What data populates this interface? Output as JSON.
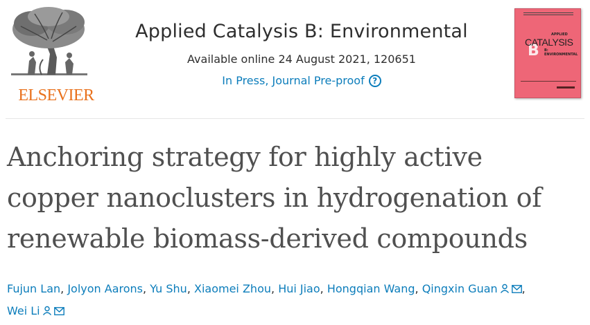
{
  "publisher": {
    "name": "ELSEVIER",
    "logo_icon": "elsevier-tree-icon"
  },
  "journal": {
    "title": "Applied Catalysis B: Environmental",
    "availability": "Available online 24 August 2021, 120651",
    "status": "In Press, Journal Pre-proof",
    "help_icon": "?",
    "cover": {
      "applied": "APPLIED",
      "catalysis": "CATALYSIS",
      "letter": "B",
      "environmental": "B: ENVIRONMENTAL",
      "color": "#ee6677"
    }
  },
  "article": {
    "title_lines": [
      "Anchoring strategy for highly active",
      "copper nanoclusters in hydrogenation of",
      "renewable biomass-derived compounds"
    ]
  },
  "authors": {
    "list": [
      "Fujun Lan",
      "Jolyon Aarons",
      "Yu Shu",
      "Xiaomei Zhou",
      "Hui Jiao",
      "Hongqian Wang",
      "Qingxin Guan",
      "Wei Li"
    ],
    "separator": ",",
    "link_color": "#0c7dbb"
  }
}
